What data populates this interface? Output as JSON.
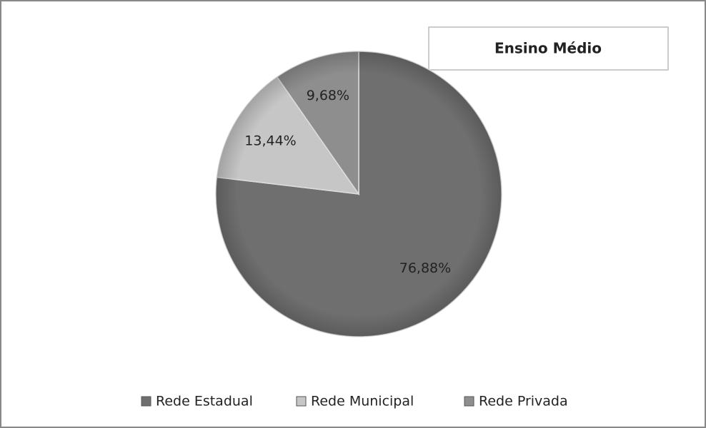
{
  "chart_data": {
    "type": "pie",
    "title": "Ensino Médio",
    "categories": [
      "Rede Estadual",
      "Rede Municipal",
      "Rede Privada"
    ],
    "values": [
      76.88,
      13.44,
      9.68
    ],
    "value_labels": [
      "76,88%",
      "13,44%",
      "9,68%"
    ],
    "colors": [
      "#6f6f6f",
      "#c6c6c6",
      "#8e8e8e"
    ],
    "legend": "bottom"
  }
}
